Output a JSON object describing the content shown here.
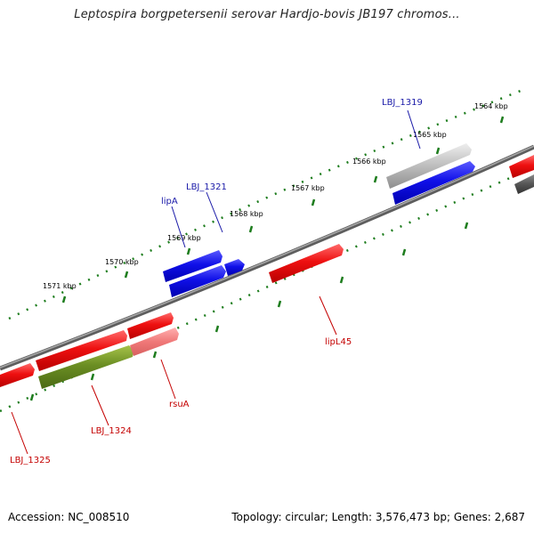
{
  "map": {
    "title": "Leptospira borgpetersenii serovar Hardjo-bovis JB197 chromos...",
    "accession": "Accession: NC_008510",
    "summary": "Topology: circular; Length: 3,576,473 bp; Genes: 2,687",
    "tick_labels": [
      "1564 kbp",
      "1565 kbp",
      "1566 kbp",
      "1567 kbp",
      "1568 kbp",
      "1569 kbp",
      "1570 kbp",
      "1571 kbp"
    ],
    "gene_labels": [
      {
        "text": "LBJ_1319",
        "strand": "forward"
      },
      {
        "text": "LBJ_1321",
        "strand": "forward"
      },
      {
        "text": "lipA",
        "strand": "forward"
      },
      {
        "text": "lipL45",
        "strand": "reverse"
      },
      {
        "text": "rsuA",
        "strand": "reverse"
      },
      {
        "text": "LBJ_1324",
        "strand": "reverse"
      },
      {
        "text": "LBJ_1325",
        "strand": "reverse"
      }
    ],
    "colors": {
      "forward_label": "#1a1aa8",
      "reverse_label": "#c40000",
      "forward_gene": "#1010e8",
      "reverse_gene": "#e81010",
      "rna_gene": "#6b8e23",
      "pseudo_gene": "#b0b0b0",
      "dark_gene": "#555555",
      "backbone": "#808080",
      "tick": "#1e7d1e"
    }
  }
}
